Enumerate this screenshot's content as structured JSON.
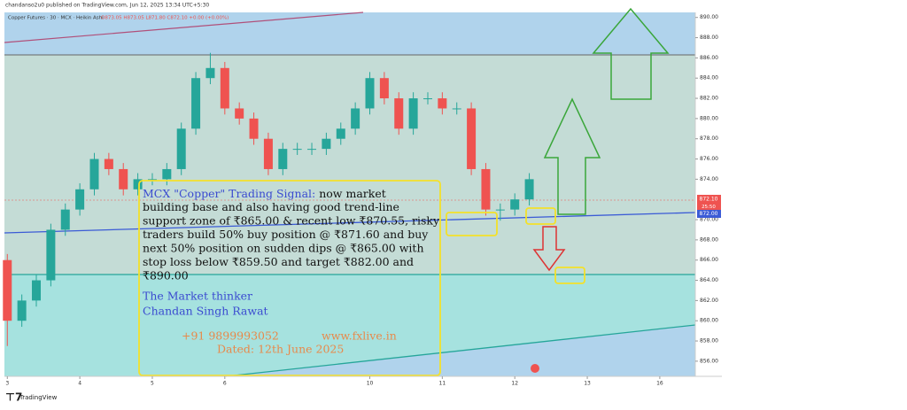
{
  "chart_data": {
    "type": "candlestick",
    "header": "chandanso2u0 published on TradingView.com, Jun 12, 2025 13:34 UTC+5:30",
    "legend": "Copper Futures · 30 · MCX · Heikin Ashi",
    "ohlc_text": "O873.05 H873.05 L871.80 C872.10 +0.00 (+0.00%)",
    "last_price_label": "872.10",
    "countdown": "25:50",
    "line_price_label": "872.00",
    "footer": "TradingView",
    "annotation": {
      "heading": "MCX \"Copper\" Trading Signal:",
      "lines": [
        " now market",
        "building base and also having good trend-line",
        "support zone of ₹865.00 & recent low ₹870.55, risky",
        "traders build 50% buy position @ ₹871.60 and buy",
        "next 50% position on sudden dips @ ₹865.00 with",
        "stop loss below ₹859.50 and target ₹882.00 and",
        "₹890.00"
      ],
      "author": [
        "The Market thinker",
        "Chandan Singh Rawat"
      ],
      "phone": "+91 9899993052",
      "site": "www.fxlive.in",
      "date": "Dated: 12th June 2025"
    },
    "x": [
      0,
      0.2,
      0.4,
      0.6,
      0.8,
      1.0,
      1.2,
      1.4,
      1.6,
      1.8,
      2.0,
      2.2,
      2.4,
      2.6,
      2.8,
      3.0,
      3.2,
      3.4,
      3.6,
      3.8,
      4.0,
      4.2,
      4.4,
      4.6,
      4.8,
      5.0,
      5.2,
      5.4,
      5.6,
      5.8,
      6.0,
      6.2,
      6.4,
      6.6,
      6.8,
      7.0,
      7.2
    ],
    "open": [
      866,
      860,
      862,
      864,
      869,
      871,
      873,
      876,
      875,
      873,
      874,
      874,
      875,
      879,
      884,
      885,
      881,
      880,
      878,
      875,
      877,
      877,
      877,
      878,
      879,
      881,
      884,
      882,
      879,
      882,
      882,
      881,
      881,
      875,
      871,
      871,
      872
    ],
    "close": [
      860,
      862,
      864,
      869,
      871,
      873,
      876,
      875,
      873,
      874,
      874,
      875,
      879,
      884,
      885,
      881,
      880,
      878,
      875,
      877,
      877,
      877,
      878,
      879,
      881,
      884,
      882,
      879,
      882,
      882,
      881,
      881,
      875,
      871,
      871,
      872,
      874
    ],
    "high": [
      866.6,
      862.6,
      864.6,
      869.6,
      871.6,
      873.6,
      876.6,
      876.6,
      875.6,
      874.6,
      874.6,
      875.6,
      879.6,
      884.6,
      886.5,
      885.6,
      881.6,
      880.6,
      878.6,
      877.6,
      877.6,
      877.6,
      878.6,
      879.6,
      881.6,
      884.6,
      884.6,
      882.6,
      882.6,
      882.6,
      882.6,
      881.6,
      881.6,
      875.6,
      871.6,
      872.6,
      874.6
    ],
    "low": [
      857.5,
      859.4,
      861.4,
      863.4,
      868.4,
      870.4,
      872.4,
      874.4,
      872.4,
      872.4,
      873.4,
      873.4,
      874.4,
      878.4,
      883.4,
      880.4,
      879.4,
      877.4,
      874.4,
      874.4,
      876.4,
      876.4,
      876.4,
      877.4,
      878.4,
      880.4,
      881.4,
      878.4,
      878.4,
      881.4,
      880.4,
      880.4,
      874.4,
      870.4,
      869.9,
      870.4,
      871.4
    ],
    "up_color": "#26a69a",
    "down_color": "#ef5350",
    "xlim": [
      -0.04,
      9.49
    ],
    "xticks": [
      {
        "value": 0,
        "label": "3"
      },
      {
        "value": 1,
        "label": "4"
      },
      {
        "value": 2,
        "label": "5"
      },
      {
        "value": 3,
        "label": "6"
      },
      {
        "value": 5,
        "label": "10"
      },
      {
        "value": 6,
        "label": "11"
      },
      {
        "value": 7,
        "label": "12"
      },
      {
        "value": 8,
        "label": "13"
      },
      {
        "value": 9,
        "label": "16"
      }
    ],
    "ylim": [
      854.5,
      890.5
    ],
    "yticks": [
      {
        "value": 856,
        "label": "856.00"
      },
      {
        "value": 858,
        "label": "858.00"
      },
      {
        "value": 860,
        "label": "860.00"
      },
      {
        "value": 862,
        "label": "862.00"
      },
      {
        "value": 864,
        "label": "864.00"
      },
      {
        "value": 866,
        "label": "866.00"
      },
      {
        "value": 868,
        "label": "868.00"
      },
      {
        "value": 870,
        "label": "870.00"
      },
      {
        "value": 874,
        "label": "874.00"
      },
      {
        "value": 876,
        "label": "876.00"
      },
      {
        "value": 878,
        "label": "878.00"
      },
      {
        "value": 880,
        "label": "880.00"
      },
      {
        "value": 882,
        "label": "882.00"
      },
      {
        "value": 884,
        "label": "884.00"
      },
      {
        "value": 886,
        "label": "886.00"
      },
      {
        "value": 888,
        "label": "888.00"
      },
      {
        "value": 890,
        "label": "890.00"
      }
    ]
  }
}
